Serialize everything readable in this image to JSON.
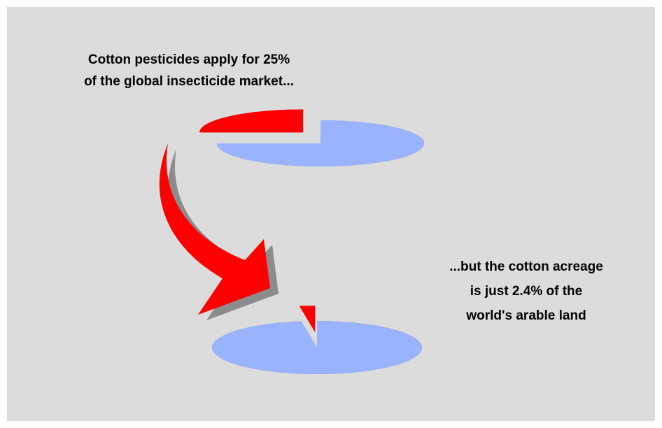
{
  "chart_data": [
    {
      "type": "pie",
      "annotation": [
        "Cotton pesticides apply for 25%",
        "of the global insecticide market..."
      ],
      "values": [
        25,
        75
      ],
      "colors": [
        "#ff0000",
        "#99b3ff"
      ]
    },
    {
      "type": "pie",
      "annotation": [
        "...but the cotton acreage",
        "is just 2.4% of the",
        "world's arable land"
      ],
      "values": [
        2.4,
        97.6
      ],
      "colors": [
        "#ff0000",
        "#99b3ff"
      ]
    }
  ]
}
